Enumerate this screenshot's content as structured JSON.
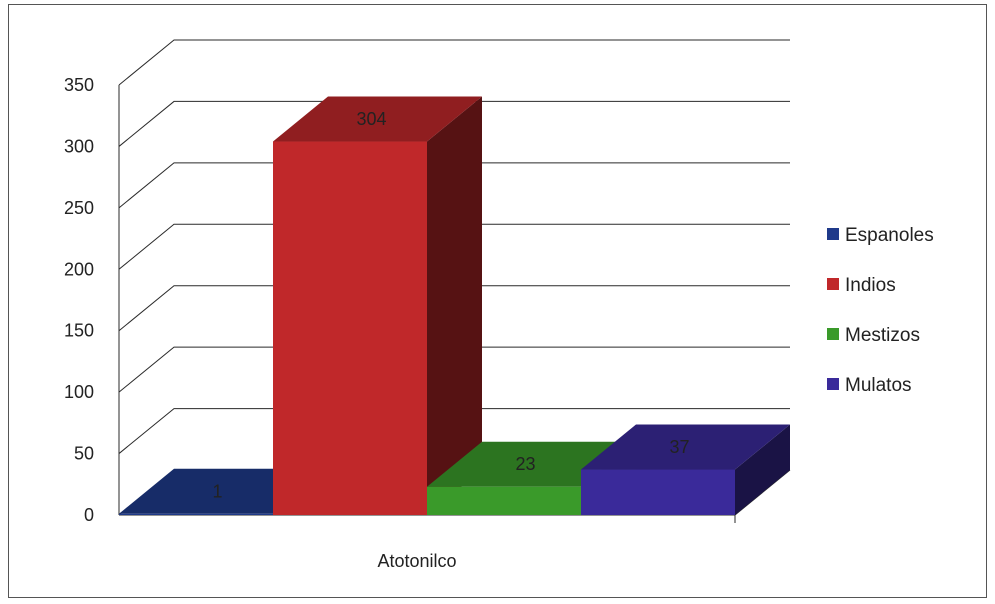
{
  "chart_data": {
    "type": "bar",
    "categories": [
      "Atotonilco"
    ],
    "series": [
      {
        "name": "Espanoles",
        "values": [
          1
        ],
        "color": "#1f3a8a"
      },
      {
        "name": "Indios",
        "values": [
          304
        ],
        "color": "#c0282a"
      },
      {
        "name": "Mestizos",
        "values": [
          23
        ],
        "color": "#3a9a2a"
      },
      {
        "name": "Mulatos",
        "values": [
          37
        ],
        "color": "#3a2a9a"
      }
    ],
    "data_labels": [
      "1",
      "304",
      "23",
      "37"
    ],
    "title": "",
    "xlabel": "",
    "ylabel": "",
    "ylim": [
      0,
      350
    ],
    "yticks": [
      "0",
      "50",
      "100",
      "150",
      "200",
      "250",
      "300",
      "350"
    ],
    "grid": true,
    "legend_position": "right",
    "style": "3d-column"
  }
}
